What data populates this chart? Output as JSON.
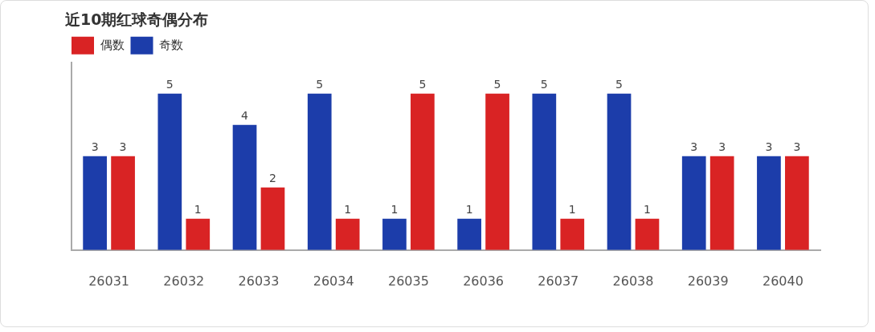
{
  "chart_data": {
    "type": "bar",
    "title": "近10期红球奇偶分布",
    "categories": [
      "26031",
      "26032",
      "26033",
      "26034",
      "26035",
      "26036",
      "26037",
      "26038",
      "26039",
      "26040"
    ],
    "series": [
      {
        "name": "奇数",
        "color": "#1c3daa",
        "values": [
          3,
          5,
          4,
          5,
          1,
          1,
          5,
          5,
          3,
          3
        ]
      },
      {
        "name": "偶数",
        "color": "#d92324",
        "values": [
          3,
          1,
          2,
          1,
          5,
          5,
          1,
          1,
          3,
          3
        ]
      }
    ],
    "data_labels": true,
    "legend": "top",
    "grid": false
  }
}
